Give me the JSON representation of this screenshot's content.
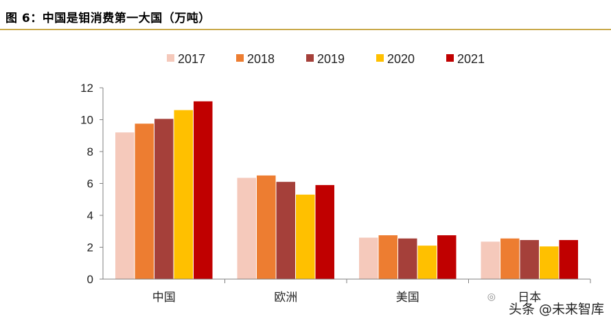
{
  "figure": {
    "title": "图 6：中国是钼消费第一大国（万吨）",
    "rule_color": "#c9a94a"
  },
  "chart_data": {
    "type": "bar",
    "categories": [
      "中国",
      "欧洲",
      "美国",
      "日本"
    ],
    "series": [
      {
        "name": "2017",
        "color": "#f5c9bb",
        "values": [
          9.2,
          6.35,
          2.6,
          2.35
        ]
      },
      {
        "name": "2018",
        "color": "#ed7d31",
        "values": [
          9.75,
          6.5,
          2.75,
          2.55
        ]
      },
      {
        "name": "2019",
        "color": "#a5403a",
        "values": [
          10.05,
          6.1,
          2.55,
          2.45
        ]
      },
      {
        "name": "2020",
        "color": "#ffc000",
        "values": [
          10.6,
          5.3,
          2.1,
          2.05
        ]
      },
      {
        "name": "2021",
        "color": "#c00000",
        "values": [
          11.15,
          5.9,
          2.75,
          2.45
        ]
      }
    ],
    "ylim": [
      0,
      12
    ],
    "yticks": [
      "0",
      "2",
      "4",
      "6",
      "8",
      "10",
      "12"
    ],
    "grid": false,
    "legend_position": "top"
  },
  "watermark": {
    "text": "头条 @未来智库",
    "icon": "wechat-icon"
  }
}
